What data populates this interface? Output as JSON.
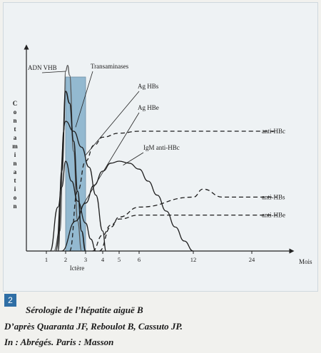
{
  "figure": {
    "number": "2",
    "caption_line1": "Sérologie de l’hépatite aiguë B",
    "caption_line2": "D’après  Quaranta JF, Reboulot B, Cassuto JP.",
    "caption_line3": "In  :  Abrégés. Paris : Masson"
  },
  "chart_data": {
    "type": "line",
    "title": "",
    "ylabel": "Contamination",
    "xlabel": "Mois",
    "x_ticks": [
      "1",
      "2",
      "3",
      "4",
      "5",
      "6",
      "12",
      "24"
    ],
    "shaded_band": {
      "label": "Ictère",
      "x": [
        2,
        3
      ]
    },
    "annotations": [
      "ADN VHB",
      "Transaminases",
      "Ag HBs",
      "Ag HBe",
      "IgM anti-HBc"
    ],
    "series": [
      {
        "name": "ADN VHB",
        "style": "solid",
        "x": [
          1.4,
          1.7,
          1.9,
          2.0,
          2.1,
          2.2,
          2.4,
          2.6,
          2.8
        ],
        "y": [
          0,
          10,
          60,
          90,
          93,
          88,
          50,
          15,
          0
        ]
      },
      {
        "name": "Transaminases",
        "style": "solid",
        "x": [
          1.6,
          1.8,
          2.0,
          2.2,
          2.4,
          2.6,
          2.8,
          3.0
        ],
        "y": [
          0,
          40,
          80,
          74,
          55,
          30,
          10,
          0
        ]
      },
      {
        "name": "Ag HBs",
        "style": "solid",
        "x": [
          1.2,
          1.6,
          2.0,
          2.4,
          2.8,
          3.2,
          3.6,
          4.0,
          4.2
        ],
        "y": [
          0,
          22,
          65,
          60,
          52,
          42,
          28,
          10,
          0
        ]
      },
      {
        "name": "Ag HBe",
        "style": "solid",
        "x": [
          1.5,
          1.8,
          2.0,
          2.3,
          2.6,
          3.0,
          3.3,
          3.6
        ],
        "y": [
          0,
          32,
          45,
          35,
          25,
          14,
          6,
          0
        ]
      },
      {
        "name": "IgM anti-HBc",
        "style": "solid",
        "x": [
          1.8,
          2.5,
          3.0,
          3.5,
          4.0,
          4.5,
          5.0,
          5.5,
          6.0,
          7.0,
          8.0,
          9.0,
          10.0,
          11.0,
          12.0
        ],
        "y": [
          0,
          15,
          24,
          33,
          40,
          44,
          45,
          44,
          41,
          35,
          28,
          20,
          12,
          5,
          0
        ]
      },
      {
        "name": "anti-HBc",
        "style": "dashed",
        "x": [
          2.2,
          2.6,
          3.0,
          3.5,
          4.0,
          5.0,
          6.0,
          12.0,
          24.0,
          30.0
        ],
        "y": [
          0,
          30,
          45,
          53,
          57,
          59,
          60,
          60,
          60,
          60
        ]
      },
      {
        "name": "anti-HBs",
        "style": "dashed",
        "x": [
          3.8,
          4.5,
          5.0,
          6.0,
          12.0,
          14.0,
          18.0,
          24.0,
          30.0
        ],
        "y": [
          0,
          12,
          17,
          22,
          27,
          31,
          27,
          27,
          27
        ]
      },
      {
        "name": "anti-HBe",
        "style": "dashed",
        "x": [
          3.4,
          4.0,
          4.5,
          5.0,
          6.0,
          12.0,
          24.0,
          30.0
        ],
        "y": [
          0,
          8,
          13,
          16,
          18,
          18,
          18,
          18
        ]
      }
    ]
  }
}
